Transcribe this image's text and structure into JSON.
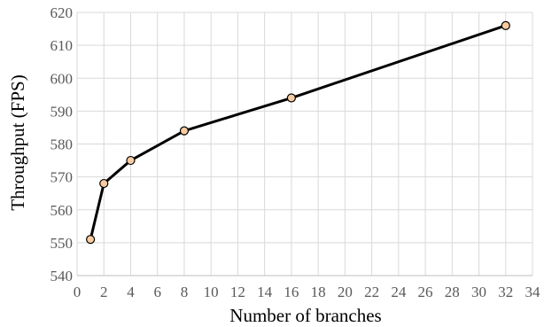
{
  "chart_data": {
    "type": "line",
    "title": "",
    "xlabel": "Number of branches",
    "ylabel": "Throughput (FPS)",
    "xlim": [
      0,
      34
    ],
    "ylim": [
      540,
      620
    ],
    "x_ticks": [
      0,
      2,
      4,
      6,
      8,
      10,
      12,
      14,
      16,
      18,
      20,
      22,
      24,
      26,
      28,
      30,
      32,
      34
    ],
    "y_ticks": [
      540,
      550,
      560,
      570,
      580,
      590,
      600,
      610,
      620
    ],
    "grid": true,
    "legend": "none",
    "series": [
      {
        "x": [
          1,
          2,
          4,
          8,
          16,
          32
        ],
        "values": [
          551,
          568,
          575,
          584,
          594,
          616
        ]
      }
    ],
    "colors": {
      "line": "#000000",
      "marker_fill": "#f8cba0",
      "marker_stroke": "#000000",
      "grid": "#d9d9d9"
    }
  }
}
